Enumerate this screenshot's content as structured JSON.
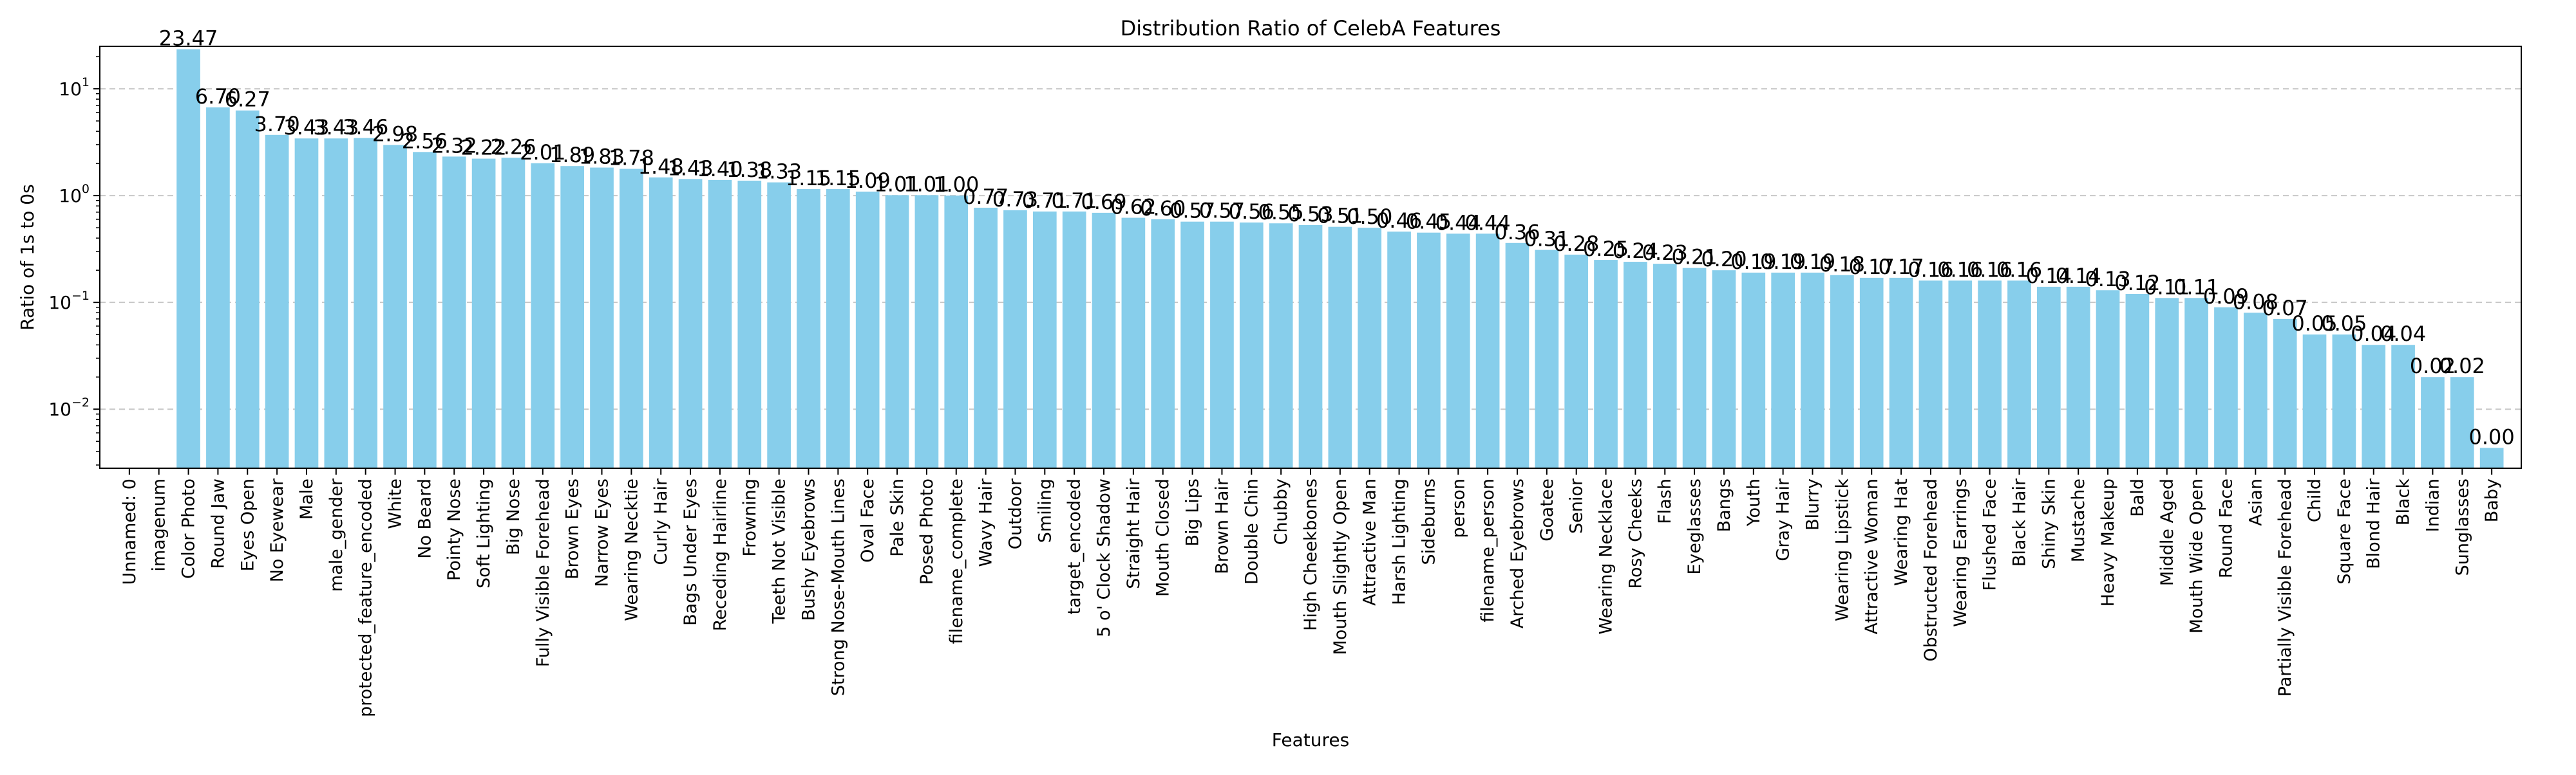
{
  "chart_data": {
    "type": "bar",
    "title": "Distribution Ratio of CelebA Features",
    "xlabel": "Features",
    "ylabel": "Ratio of 1s to 0s",
    "y_scale": "log",
    "ylim": [
      0.0028,
      25
    ],
    "yticks": [
      {
        "value": 0.01,
        "base": "10",
        "exp": "−2"
      },
      {
        "value": 0.1,
        "base": "10",
        "exp": "−1"
      },
      {
        "value": 1,
        "base": "10",
        "exp": "0"
      },
      {
        "value": 10,
        "base": "10",
        "exp": "1"
      }
    ],
    "grid": "y-dashed",
    "bar_color": "#87CEEB",
    "categories": [
      "Unnamed: 0",
      "imagenum",
      "Color Photo",
      "Round Jaw",
      "Eyes Open",
      "No Eyewear",
      "Male",
      "male_gender",
      "protected_feature_encoded",
      "White",
      "No Beard",
      "Pointy Nose",
      "Soft Lighting",
      "Big Nose",
      "Fully Visible Forehead",
      "Brown Eyes",
      "Narrow Eyes",
      "Wearing Necktie",
      "Curly Hair",
      "Bags Under Eyes",
      "Receding Hairline",
      "Frowning",
      "Teeth Not Visible",
      "Bushy Eyebrows",
      "Strong Nose-Mouth Lines",
      "Oval Face",
      "Pale Skin",
      "Posed Photo",
      "filename_complete",
      "Wavy Hair",
      "Outdoor",
      "Smiling",
      "target_encoded",
      "5 o' Clock Shadow",
      "Straight Hair",
      "Mouth Closed",
      "Big Lips",
      "Brown Hair",
      "Double Chin",
      "Chubby",
      "High Cheekbones",
      "Mouth Slightly Open",
      "Attractive Man",
      "Harsh Lighting",
      "Sideburns",
      "person",
      "filename_person",
      "Arched Eyebrows",
      "Goatee",
      "Senior",
      "Wearing Necklace",
      "Rosy Cheeks",
      "Flash",
      "Eyeglasses",
      "Bangs",
      "Youth",
      "Gray Hair",
      "Blurry",
      "Wearing Lipstick",
      "Attractive Woman",
      "Wearing Hat",
      "Obstructed Forehead",
      "Wearing Earrings",
      "Flushed Face",
      "Black Hair",
      "Shiny Skin",
      "Mustache",
      "Heavy Makeup",
      "Bald",
      "Middle Aged",
      "Mouth Wide Open",
      "Round Face",
      "Asian",
      "Partially Visible Forehead",
      "Child",
      "Square Face",
      "Blond Hair",
      "Black",
      "Indian",
      "Sunglasses",
      "Baby"
    ],
    "values": [
      0,
      0,
      23.47,
      6.7,
      6.27,
      3.7,
      3.43,
      3.43,
      3.46,
      2.98,
      2.56,
      2.32,
      2.22,
      2.26,
      2.01,
      1.89,
      1.83,
      1.78,
      1.48,
      1.43,
      1.4,
      1.38,
      1.33,
      1.15,
      1.15,
      1.09,
      1.01,
      1.01,
      1.0,
      0.77,
      0.73,
      0.71,
      0.71,
      0.69,
      0.62,
      0.6,
      0.57,
      0.57,
      0.56,
      0.55,
      0.53,
      0.51,
      0.5,
      0.46,
      0.45,
      0.44,
      0.44,
      0.36,
      0.31,
      0.28,
      0.25,
      0.24,
      0.23,
      0.21,
      0.2,
      0.19,
      0.19,
      0.19,
      0.18,
      0.17,
      0.17,
      0.16,
      0.16,
      0.16,
      0.16,
      0.14,
      0.14,
      0.13,
      0.12,
      0.11,
      0.11,
      0.09,
      0.08,
      0.07,
      0.05,
      0.05,
      0.04,
      0.04,
      0.02,
      0.02,
      0.0
    ],
    "value_labels": [
      "",
      "",
      "23.47",
      "6.70",
      "6.27",
      "3.70",
      "3.43",
      "3.43",
      "3.46",
      "2.98",
      "2.56",
      "2.32",
      "2.22",
      "2.26",
      "2.01",
      "1.89",
      "1.83",
      "1.78",
      "1.48",
      "1.43",
      "1.40",
      "1.38",
      "1.33",
      "1.15",
      "1.15",
      "1.09",
      "1.01",
      "1.01",
      "1.00",
      "0.77",
      "0.73",
      "0.71",
      "0.71",
      "0.69",
      "0.62",
      "0.60",
      "0.57",
      "0.57",
      "0.56",
      "0.55",
      "0.53",
      "0.51",
      "0.50",
      "0.46",
      "0.45",
      "0.44",
      "0.44",
      "0.36",
      "0.31",
      "0.28",
      "0.25",
      "0.24",
      "0.23",
      "0.21",
      "0.20",
      "0.19",
      "0.19",
      "0.19",
      "0.18",
      "0.17",
      "0.17",
      "0.16",
      "0.16",
      "0.16",
      "0.16",
      "0.14",
      "0.14",
      "0.13",
      "0.12",
      "0.11",
      "0.11",
      "0.09",
      "0.08",
      "0.07",
      "0.05",
      "0.05",
      "0.04",
      "0.04",
      "0.02",
      "0.02",
      "0.00"
    ]
  }
}
